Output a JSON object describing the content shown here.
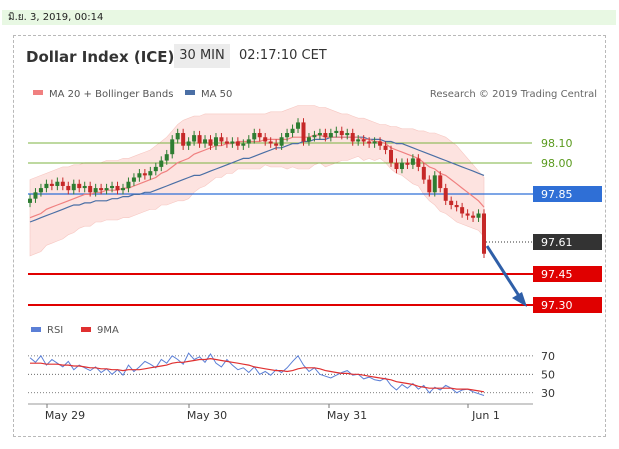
{
  "date_label": "มิ.ย. 3, 2019, 00:14",
  "header": {
    "title": "Dollar Index (ICE)",
    "timeframe": "30 MIN",
    "time": "02:17:10 CET"
  },
  "legend": {
    "ma20": "MA 20 + Bollinger Bands",
    "ma50": "MA 50",
    "credit": "Research © 2019 Trading Central"
  },
  "rsi_legend": {
    "rsi": "RSI",
    "ma9": "9MA"
  },
  "colors": {
    "ma20": "#f08080",
    "ma50": "#4a6fa5",
    "band": "#fde0dd",
    "candle_up": "#2e7d32",
    "candle_down": "#c62828",
    "green_level": "#7cb342",
    "blue_level": "#2f6fd6",
    "red_level": "#e00000",
    "current": "#333333",
    "arrow": "#2f5fa8",
    "rsi": "#5b7fd6",
    "rsi_ma": "#e03030"
  },
  "levels": [
    {
      "value": "98.10",
      "style": "green-text"
    },
    {
      "value": "98.00",
      "style": "green-text"
    },
    {
      "value": "97.85",
      "style": "blue-box"
    },
    {
      "value": "97.61",
      "style": "dark-box"
    },
    {
      "value": "97.45",
      "style": "red-box"
    },
    {
      "value": "97.30",
      "style": "red-box"
    }
  ],
  "rsi_levels": [
    "70",
    "50",
    "30"
  ],
  "x_labels": [
    "May 29",
    "May 30",
    "May 31",
    "Jun 1"
  ],
  "chart_data": {
    "type": "line",
    "title": "Dollar Index (ICE)",
    "price_range": [
      97.25,
      98.35
    ],
    "close": [
      97.87,
      97.9,
      97.92,
      97.94,
      97.93,
      97.95,
      97.93,
      97.91,
      97.94,
      97.92,
      97.93,
      97.9,
      97.92,
      97.91,
      97.92,
      97.93,
      97.91,
      97.92,
      97.95,
      97.97,
      97.99,
      97.98,
      98.0,
      98.02,
      98.05,
      98.08,
      98.15,
      98.18,
      98.12,
      98.14,
      98.17,
      98.13,
      98.15,
      98.12,
      98.16,
      98.14,
      98.13,
      98.14,
      98.12,
      98.13,
      98.15,
      98.18,
      98.16,
      98.14,
      98.13,
      98.12,
      98.16,
      98.18,
      98.2,
      98.23,
      98.14,
      98.16,
      98.17,
      98.18,
      98.16,
      98.18,
      98.19,
      98.17,
      98.18,
      98.14,
      98.15,
      98.14,
      98.13,
      98.14,
      98.12,
      98.1,
      98.04,
      98.01,
      98.04,
      98.03,
      98.06,
      98.02,
      97.96,
      97.9,
      97.98,
      97.92,
      97.86,
      97.84,
      97.83,
      97.8,
      97.79,
      97.78,
      97.8,
      97.61
    ],
    "ma20": [
      97.78,
      97.79,
      97.8,
      97.82,
      97.83,
      97.84,
      97.85,
      97.86,
      97.87,
      97.88,
      97.89,
      97.89,
      97.9,
      97.9,
      97.91,
      97.91,
      97.91,
      97.92,
      97.92,
      97.93,
      97.94,
      97.95,
      97.96,
      97.97,
      97.99,
      98.0,
      98.02,
      98.04,
      98.05,
      98.06,
      98.08,
      98.09,
      98.1,
      98.11,
      98.12,
      98.12,
      98.13,
      98.13,
      98.14,
      98.14,
      98.14,
      98.14,
      98.14,
      98.15,
      98.15,
      98.15,
      98.15,
      98.15,
      98.16,
      98.16,
      98.16,
      98.16,
      98.17,
      98.17,
      98.16,
      98.16,
      98.16,
      98.16,
      98.16,
      98.16,
      98.16,
      98.15,
      98.15,
      98.14,
      98.14,
      98.13,
      98.11,
      98.1,
      98.09,
      98.08,
      98.07,
      98.06,
      98.04,
      98.02,
      98.01,
      97.99,
      97.98,
      97.96,
      97.94,
      97.92,
      97.9,
      97.88,
      97.86,
      97.83
    ],
    "ma50": [
      97.76,
      97.77,
      97.78,
      97.79,
      97.8,
      97.81,
      97.82,
      97.83,
      97.84,
      97.84,
      97.85,
      97.85,
      97.86,
      97.86,
      97.86,
      97.87,
      97.87,
      97.88,
      97.88,
      97.89,
      97.89,
      97.9,
      97.9,
      97.91,
      97.92,
      97.93,
      97.94,
      97.95,
      97.96,
      97.97,
      97.98,
      97.98,
      97.99,
      98.0,
      98.01,
      98.02,
      98.03,
      98.04,
      98.05,
      98.06,
      98.06,
      98.07,
      98.08,
      98.09,
      98.1,
      98.11,
      98.11,
      98.12,
      98.13,
      98.13,
      98.14,
      98.14,
      98.15,
      98.15,
      98.15,
      98.16,
      98.16,
      98.16,
      98.16,
      98.16,
      98.16,
      98.16,
      98.15,
      98.15,
      98.15,
      98.14,
      98.14,
      98.13,
      98.13,
      98.12,
      98.11,
      98.1,
      98.09,
      98.08,
      98.07,
      98.06,
      98.05,
      98.04,
      98.03,
      98.02,
      98.01,
      98.0,
      97.99,
      97.98
    ],
    "band_upper": [
      97.96,
      97.97,
      97.98,
      97.99,
      98.0,
      98.01,
      98.02,
      98.02,
      98.03,
      98.03,
      98.04,
      98.04,
      98.04,
      98.04,
      98.05,
      98.05,
      98.05,
      98.06,
      98.06,
      98.07,
      98.08,
      98.09,
      98.1,
      98.12,
      98.14,
      98.16,
      98.19,
      98.22,
      98.24,
      98.25,
      98.26,
      98.26,
      98.27,
      98.27,
      98.27,
      98.27,
      98.27,
      98.27,
      98.27,
      98.27,
      98.27,
      98.27,
      98.27,
      98.27,
      98.28,
      98.28,
      98.28,
      98.29,
      98.3,
      98.31,
      98.31,
      98.31,
      98.31,
      98.3,
      98.3,
      98.29,
      98.28,
      98.27,
      98.27,
      98.26,
      98.25,
      98.25,
      98.24,
      98.23,
      98.22,
      98.22,
      98.21,
      98.21,
      98.2,
      98.2,
      98.2,
      98.19,
      98.19,
      98.18,
      98.18,
      98.17,
      98.16,
      98.14,
      98.12,
      98.09,
      98.06,
      98.03,
      98.0,
      97.97
    ],
    "band_lower": [
      97.6,
      97.61,
      97.62,
      97.65,
      97.66,
      97.67,
      97.68,
      97.7,
      97.71,
      97.73,
      97.74,
      97.74,
      97.76,
      97.76,
      97.77,
      97.77,
      97.77,
      97.78,
      97.78,
      97.79,
      97.8,
      97.81,
      97.82,
      97.82,
      97.84,
      97.84,
      97.85,
      97.86,
      97.86,
      97.87,
      97.9,
      97.92,
      97.93,
      97.95,
      97.97,
      97.97,
      97.99,
      97.99,
      98.01,
      98.01,
      98.01,
      98.01,
      98.01,
      98.03,
      98.02,
      98.02,
      98.02,
      98.01,
      98.02,
      98.01,
      98.01,
      98.01,
      98.03,
      98.04,
      98.02,
      98.03,
      98.04,
      98.05,
      98.05,
      98.06,
      98.07,
      98.05,
      98.06,
      98.05,
      98.06,
      98.04,
      98.01,
      97.99,
      97.98,
      97.96,
      97.94,
      97.93,
      97.89,
      97.86,
      97.84,
      97.81,
      97.8,
      97.78,
      97.76,
      97.75,
      97.74,
      97.73,
      97.72,
      97.69
    ],
    "rsi": [
      68,
      63,
      70,
      60,
      66,
      62,
      58,
      64,
      55,
      60,
      57,
      54,
      58,
      52,
      56,
      50,
      55,
      49,
      60,
      53,
      58,
      64,
      61,
      57,
      66,
      62,
      70,
      66,
      61,
      73,
      66,
      69,
      63,
      72,
      62,
      58,
      66,
      60,
      55,
      57,
      52,
      58,
      50,
      53,
      49,
      55,
      52,
      57,
      64,
      70,
      60,
      53,
      57,
      50,
      48,
      46,
      49,
      52,
      54,
      49,
      50,
      45,
      47,
      44,
      43,
      46,
      38,
      33,
      39,
      35,
      40,
      34,
      38,
      30,
      36,
      33,
      38,
      35,
      30,
      33,
      34,
      31,
      29,
      27
    ],
    "rsi_ma": [
      62,
      62,
      62,
      61,
      61,
      61,
      60,
      60,
      59,
      59,
      58,
      57,
      57,
      56,
      56,
      55,
      55,
      54,
      55,
      55,
      55,
      56,
      57,
      58,
      59,
      60,
      62,
      63,
      63,
      64,
      65,
      66,
      66,
      67,
      66,
      65,
      64,
      63,
      62,
      61,
      60,
      58,
      57,
      56,
      55,
      54,
      54,
      53,
      54,
      56,
      57,
      57,
      57,
      56,
      54,
      53,
      52,
      51,
      51,
      50,
      50,
      49,
      48,
      47,
      46,
      45,
      44,
      42,
      41,
      40,
      39,
      37,
      36,
      35,
      35,
      35,
      35,
      35,
      34,
      34,
      34,
      33,
      32,
      31
    ],
    "rsi_range": [
      20,
      85
    ]
  }
}
